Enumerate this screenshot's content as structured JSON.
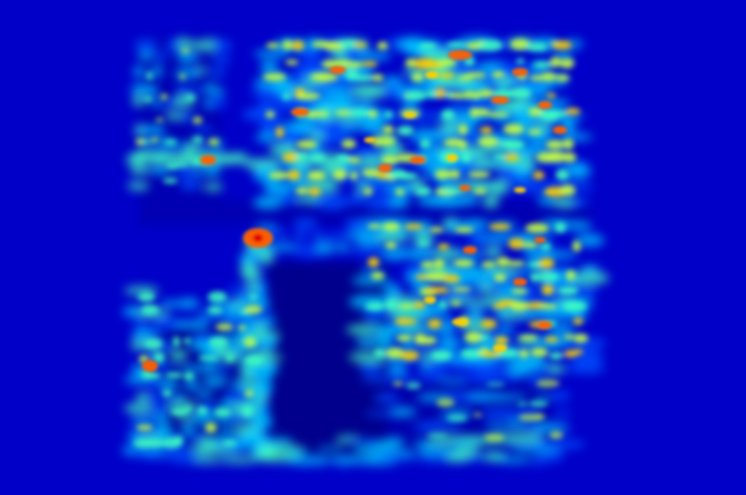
{
  "image": {
    "kind": "thermal-style attention heatmap",
    "colormap": "jet",
    "background_color": "#0000c8",
    "dark_void_color": "#00008a",
    "palette": [
      "#00008a",
      "#0000c8",
      "#0050ff",
      "#00c8ff",
      "#40ffc0",
      "#c8ff40",
      "#ffd000",
      "#ff6000",
      "#e00000"
    ]
  }
}
